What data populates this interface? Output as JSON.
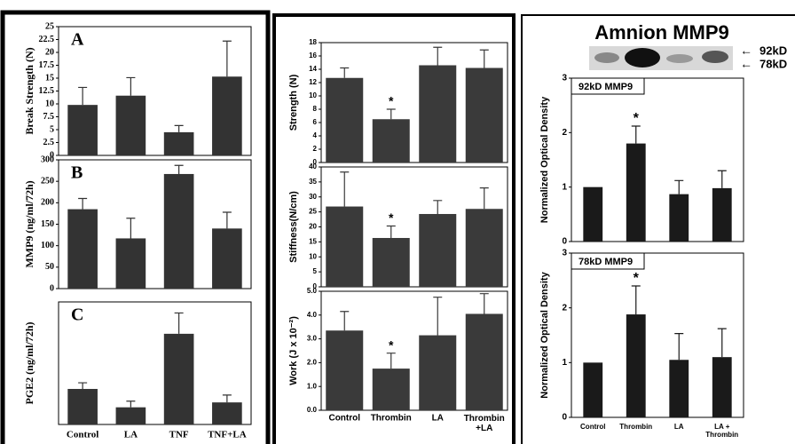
{
  "blot": {
    "title": "Amnion MMP9",
    "bands": [
      "92kD",
      "78kD"
    ]
  },
  "chart_data": [
    {
      "type": "bar",
      "title": "A",
      "ylabel": "Break Strength (N)",
      "categories": [
        null,
        null,
        null,
        null
      ],
      "values": [
        9.8,
        11.6,
        4.5,
        15.3
      ],
      "errors": [
        3.4,
        3.5,
        1.3,
        6.9
      ],
      "color": "#333333",
      "ylim": [
        0,
        25
      ],
      "yticks": [
        0,
        2.5,
        5,
        7.5,
        10,
        12.5,
        15,
        17.5,
        20,
        22.5,
        25
      ]
    },
    {
      "type": "bar",
      "title": "B",
      "ylabel": "MMP9 (ng/ml/72h)",
      "categories": [
        null,
        null,
        null,
        null
      ],
      "values": [
        185,
        117,
        267,
        140
      ],
      "errors": [
        25,
        47,
        20,
        38
      ],
      "color": "#333333",
      "ylim": [
        0,
        300
      ],
      "yticks": [
        0,
        50,
        100,
        150,
        200,
        250,
        300
      ]
    },
    {
      "type": "bar",
      "title": "C",
      "ylabel": "PGE2 (ng/ml/72h)",
      "categories": [
        "Control",
        "LA",
        "TNF",
        "TNF+LA"
      ],
      "values": [
        2.9,
        1.4,
        7.4,
        1.8
      ],
      "errors": [
        0.5,
        0.5,
        1.7,
        0.6
      ],
      "color": "#333333",
      "ylim": [
        0,
        10
      ]
    },
    {
      "type": "bar",
      "ylabel": "Strength (N)",
      "categories": [
        null,
        null,
        null,
        null
      ],
      "values": [
        12.7,
        6.5,
        14.6,
        14.2
      ],
      "errors": [
        1.5,
        1.5,
        2.7,
        2.7
      ],
      "annotations": [
        null,
        "*",
        null,
        null
      ],
      "color": "#3a3a3a",
      "ylim": [
        0,
        18
      ],
      "yticks": [
        0,
        2,
        4,
        6,
        8,
        10,
        12,
        14,
        16,
        18
      ]
    },
    {
      "type": "bar",
      "ylabel": "Stiffness(N/cm)",
      "categories": [
        null,
        null,
        null,
        null
      ],
      "values": [
        26.8,
        16.3,
        24.3,
        26.0
      ],
      "errors": [
        11.5,
        4,
        4.5,
        7
      ],
      "annotations": [
        null,
        "*",
        null,
        null
      ],
      "color": "#3a3a3a",
      "ylim": [
        0,
        40
      ],
      "yticks": [
        0,
        5,
        10,
        15,
        20,
        25,
        30,
        35,
        40
      ]
    },
    {
      "type": "bar",
      "ylabel": "Work (J x 10⁻²)",
      "categories": [
        "Control",
        "Thrombin",
        "LA",
        "Thrombin +LA"
      ],
      "values": [
        3.35,
        1.75,
        3.15,
        4.05
      ],
      "errors": [
        0.8,
        0.65,
        1.6,
        0.85
      ],
      "annotations": [
        null,
        "*",
        null,
        null
      ],
      "color": "#3a3a3a",
      "ylim": [
        0,
        5
      ],
      "yticks": [
        {
          "value": 0,
          "label": "0.0"
        },
        {
          "value": 1,
          "label": "1.0"
        },
        {
          "value": 2,
          "label": "2.0"
        },
        {
          "value": 3,
          "label": "3.0"
        },
        {
          "value": 4,
          "label": "4.0"
        },
        {
          "value": 5,
          "label": "5.0"
        }
      ]
    },
    {
      "type": "bar",
      "title": "92kD MMP9",
      "ylabel": "Normalized Optical Density",
      "categories": [
        null,
        null,
        null,
        null
      ],
      "values": [
        1.0,
        1.8,
        0.87,
        0.98
      ],
      "errors": [
        null,
        0.32,
        0.25,
        0.32
      ],
      "annotations": [
        null,
        "*",
        null,
        null
      ],
      "color": "#1a1a1a",
      "ylim": [
        0,
        3
      ],
      "yticks": [
        0,
        1,
        2,
        3
      ]
    },
    {
      "type": "bar",
      "title": "78kD MMP9",
      "ylabel": "Normalized Optical Density",
      "categories": [
        "Control",
        "Thrombin",
        "LA",
        "LA + Thrombin"
      ],
      "values": [
        1.0,
        1.88,
        1.05,
        1.1
      ],
      "errors": [
        null,
        0.52,
        0.48,
        0.52
      ],
      "annotations": [
        null,
        "*",
        null,
        null
      ],
      "color": "#1a1a1a",
      "ylim": [
        0,
        3
      ],
      "yticks": [
        0,
        1,
        2,
        3
      ]
    }
  ]
}
